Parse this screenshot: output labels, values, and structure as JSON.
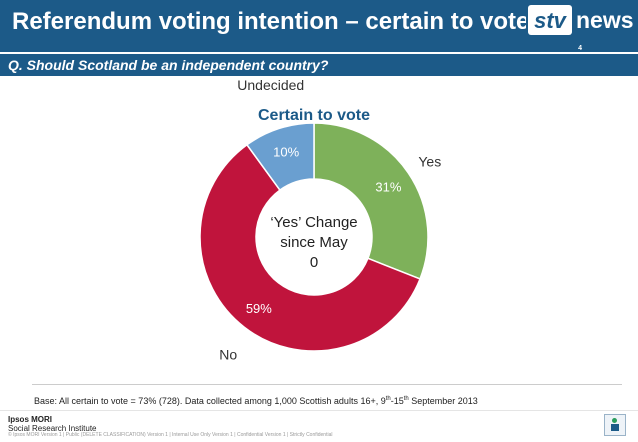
{
  "header": {
    "title": "Referendum voting intention – certain to vote",
    "page_number": "4",
    "logo_text": "news"
  },
  "question": "Q. Should Scotland be an independent country?",
  "chart_data": {
    "type": "pie",
    "donut": true,
    "title": "Certain to vote",
    "categories": [
      "Yes",
      "No",
      "Undecided"
    ],
    "values": [
      31,
      59,
      10
    ],
    "value_labels": [
      "31%",
      "59%",
      "10%"
    ],
    "colors": [
      "#7eb15a",
      "#c0143c",
      "#6a9fd0"
    ],
    "center_label": [
      "‘Yes’ Change",
      "since May",
      "0"
    ],
    "legend": "none"
  },
  "colors": {
    "brand": "#1c5a88",
    "title_text": "#1c5a88"
  },
  "footer": {
    "base_prefix": "Base: All certain to vote = 73% (728). Data collected among 1,000 Scottish adults 16+, 9",
    "base_sup1": "th",
    "base_mid": "-15",
    "base_sup2": "th",
    "base_suffix": " September 2013",
    "brand_line1": "Ipsos MORI",
    "brand_line2": "Social Research Institute",
    "legal": "© Ipsos MORI    Version 1 | Public (DELETE CLASSIFICATION)    Version 1 | Internal Use Only    Version 1 | Confidential    Version 1 | Strictly Confidential"
  }
}
